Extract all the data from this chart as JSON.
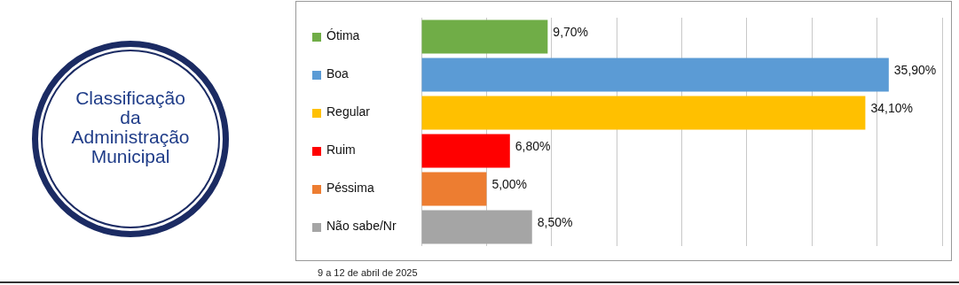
{
  "chart_data": {
    "type": "bar",
    "orientation": "horizontal",
    "title": "Classificação da Administração Municipal",
    "categories": [
      "Ótima",
      "Boa",
      "Regular",
      "Ruim",
      "Péssima",
      "Não sabe/Nr"
    ],
    "values": [
      9.7,
      35.9,
      34.1,
      6.8,
      5.0,
      8.5
    ],
    "colors": [
      "#70ad47",
      "#5b9bd5",
      "#ffc000",
      "#ff0000",
      "#ed7d31",
      "#a5a5a5"
    ],
    "value_labels": [
      "9,70%",
      "35,90%",
      "34,10%",
      "6,80%",
      "5,00%",
      "8,50%"
    ],
    "xlim": [
      0,
      40
    ],
    "xticks": [
      {
        "value": 0,
        "label": null
      },
      {
        "value": 5,
        "label": null
      },
      {
        "value": 10,
        "label": null
      },
      {
        "value": 15,
        "label": null
      },
      {
        "value": 20,
        "label": null
      },
      {
        "value": 25,
        "label": null
      },
      {
        "value": 30,
        "label": null
      },
      {
        "value": 35,
        "label": null
      },
      {
        "value": 40,
        "label": null
      }
    ],
    "grid": "x",
    "legend": false,
    "annotations": [
      "9 a 12 de abril de 2025"
    ]
  }
}
